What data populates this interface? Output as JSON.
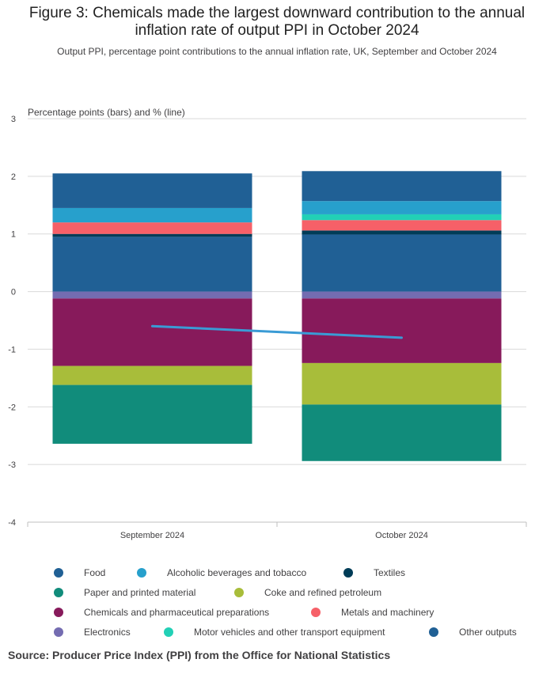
{
  "title_line1": "Figure 3: Chemicals made the largest downward contribution to the annual",
  "title_line2": "inflation rate of output PPI in October 2024",
  "subtitle": "Output PPI, percentage point contributions to the annual inflation rate, UK, September and October 2024",
  "source": "Source: Producer Price Index (PPI) from the Office for National Statistics",
  "colors": {
    "Food": "#206095",
    "Alcoholic beverages and tobacco": "#27a0cc",
    "Textiles": "#003c57",
    "Paper and printed material": "#118c7b",
    "Coke and refined petroleum": "#a8bd3a",
    "Chemicals and pharmaceutical preparations": "#871a5b",
    "Metals and machinery": "#f66068",
    "Electronics": "#746cb1",
    "Motor vehicles and other transport equipment": "#22d0b6",
    "Other outputs": "#206095",
    "line": "#3a9bd5"
  },
  "legend": [
    {
      "label": "Food"
    },
    {
      "label": "Alcoholic beverages and tobacco"
    },
    {
      "label": "Textiles"
    },
    {
      "label": "Paper and printed material"
    },
    {
      "label": "Coke and refined petroleum"
    },
    {
      "label": "Chemicals and pharmaceutical preparations"
    },
    {
      "label": "Metals and machinery"
    },
    {
      "label": "Electronics"
    },
    {
      "label": "Motor vehicles and other transport equipment"
    },
    {
      "label": "Other outputs"
    }
  ],
  "chart_data": {
    "type": "bar",
    "stacked": true,
    "title": "Figure 3: Chemicals made the largest downward contribution to the annual inflation rate of output PPI in October 2024",
    "subtitle": "Output PPI, percentage point contributions to the annual inflation rate, UK, September and October 2024",
    "ylabel": "Percentage points (bars) and % (line)",
    "xlabel": "",
    "ylim": [
      -4,
      3
    ],
    "yticks": [
      3,
      2,
      1,
      0,
      -1,
      -2,
      -3,
      -4
    ],
    "categories": [
      "September 2024",
      "October 2024"
    ],
    "series": [
      {
        "name": "Food",
        "values": [
          0.95,
          0.99
        ]
      },
      {
        "name": "Textiles",
        "values": [
          0.05,
          0.07
        ]
      },
      {
        "name": "Metals and machinery",
        "values": [
          0.2,
          0.18
        ]
      },
      {
        "name": "Motor vehicles and other transport equipment",
        "values": [
          0.0,
          0.1
        ]
      },
      {
        "name": "Alcoholic beverages and tobacco",
        "values": [
          0.25,
          0.23
        ]
      },
      {
        "name": "Other outputs",
        "values": [
          0.6,
          0.52
        ]
      },
      {
        "name": "Electronics",
        "values": [
          -0.12,
          -0.12
        ]
      },
      {
        "name": "Chemicals and pharmaceutical preparations",
        "values": [
          -1.17,
          -1.12
        ]
      },
      {
        "name": "Coke and refined petroleum",
        "values": [
          -0.33,
          -0.72
        ]
      },
      {
        "name": "Paper and printed material",
        "values": [
          -1.02,
          -0.98
        ]
      }
    ],
    "line": {
      "name": "Output PPI annual rate",
      "values": [
        -0.6,
        -0.8
      ]
    }
  }
}
